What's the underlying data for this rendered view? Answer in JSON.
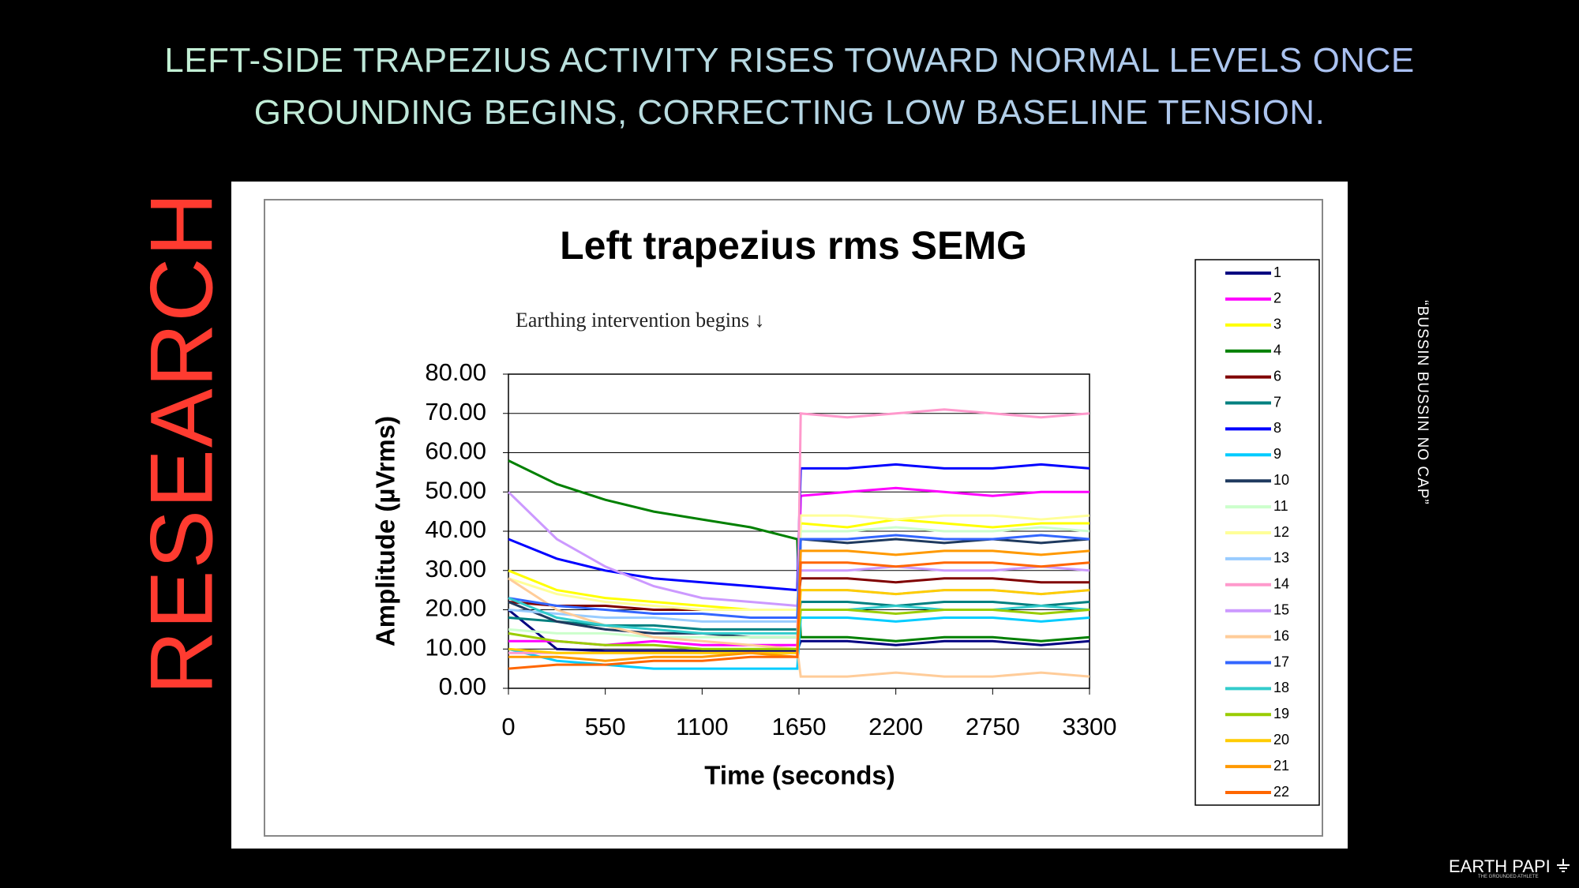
{
  "header": {
    "title_lines": [
      "LEFT-SIDE TRAPEZIUS ACTIVITY RISES TOWARD NORMAL LEVELS ONCE",
      "GROUNDING BEGINS, CORRECTING LOW BASELINE TENSION."
    ]
  },
  "side_label": "RESEARCH",
  "quote": "“BUSSIN BUSSIN NO CAP”",
  "brand": {
    "name": "EARTH PAPI",
    "tagline": "THE GROUNDED ATHLETE"
  },
  "chart_data": {
    "type": "line",
    "title": "Left trapezius rms SEMG",
    "annotation": "Earthing intervention begins ↓",
    "x_label": "Time (seconds)",
    "y_label": "Amplitude (µVrms)",
    "x": [
      0,
      275,
      550,
      825,
      1100,
      1375,
      1640,
      1660,
      1925,
      2200,
      2475,
      2750,
      3025,
      3300
    ],
    "xlim": [
      0,
      3300
    ],
    "xticks": [
      0,
      550,
      1100,
      1650,
      2200,
      2750,
      3300
    ],
    "ylim": [
      0,
      80
    ],
    "yticks": [
      {
        "value": 0,
        "label": "0.00"
      },
      {
        "value": 10,
        "label": "10.00"
      },
      {
        "value": 20,
        "label": "20.00"
      },
      {
        "value": 30,
        "label": "30.00"
      },
      {
        "value": 40,
        "label": "40.00"
      },
      {
        "value": 50,
        "label": "50.00"
      },
      {
        "value": 60,
        "label": "60.00"
      },
      {
        "value": 70,
        "label": "70.00"
      },
      {
        "value": 80,
        "label": "80.00"
      }
    ],
    "grid": true,
    "series": [
      {
        "name": "1",
        "color": "#000080",
        "values": [
          20,
          10,
          9.5,
          9.5,
          9.5,
          9.5,
          9.5,
          12,
          12,
          11,
          12,
          12,
          11,
          12
        ]
      },
      {
        "name": "2",
        "color": "#ff00ff",
        "values": [
          12,
          12,
          11,
          12,
          11,
          11,
          11,
          49,
          50,
          51,
          50,
          49,
          50,
          50
        ]
      },
      {
        "name": "3",
        "color": "#ffff00",
        "values": [
          30,
          25,
          23,
          22,
          21,
          20,
          20,
          42,
          41,
          43,
          42,
          41,
          42,
          42
        ]
      },
      {
        "name": "4",
        "color": "#008000",
        "values": [
          58,
          52,
          48,
          45,
          43,
          41,
          38,
          13,
          13,
          12,
          13,
          13,
          12,
          13
        ]
      },
      {
        "name": "6",
        "color": "#800000",
        "values": [
          22,
          21,
          21,
          20,
          20,
          20,
          20,
          28,
          28,
          27,
          28,
          28,
          27,
          27
        ]
      },
      {
        "name": "7",
        "color": "#008080",
        "values": [
          18,
          17,
          16,
          16,
          15,
          15,
          15,
          22,
          22,
          21,
          22,
          22,
          21,
          22
        ]
      },
      {
        "name": "8",
        "color": "#0000ff",
        "values": [
          38,
          33,
          30,
          28,
          27,
          26,
          25,
          56,
          56,
          57,
          56,
          56,
          57,
          56
        ]
      },
      {
        "name": "9",
        "color": "#00ccff",
        "values": [
          10,
          7,
          6,
          5,
          5,
          5,
          5,
          18,
          18,
          17,
          18,
          18,
          17,
          18
        ]
      },
      {
        "name": "10",
        "color": "#1f3a5f",
        "values": [
          22,
          17,
          15,
          14,
          14,
          13,
          13,
          38,
          37,
          38,
          37,
          38,
          37,
          38
        ]
      },
      {
        "name": "11",
        "color": "#ccffcc",
        "values": [
          15,
          14,
          14,
          13,
          13,
          13,
          13,
          40,
          40,
          41,
          40,
          40,
          41,
          40
        ]
      },
      {
        "name": "12",
        "color": "#ffff99",
        "values": [
          28,
          24,
          22,
          21,
          20,
          20,
          20,
          44,
          44,
          43,
          44,
          44,
          43,
          44
        ]
      },
      {
        "name": "13",
        "color": "#99ccff",
        "values": [
          20,
          19,
          18,
          18,
          17,
          17,
          17,
          25,
          25,
          24,
          25,
          25,
          24,
          25
        ]
      },
      {
        "name": "14",
        "color": "#ff99cc",
        "values": [
          9,
          9,
          9,
          9,
          9,
          9,
          9,
          70,
          69,
          70,
          71,
          70,
          69,
          70
        ]
      },
      {
        "name": "15",
        "color": "#cc99ff",
        "values": [
          50,
          38,
          31,
          26,
          23,
          22,
          21,
          30,
          30,
          31,
          30,
          30,
          31,
          30
        ]
      },
      {
        "name": "16",
        "color": "#ffcc99",
        "values": [
          28,
          20,
          16,
          13,
          12,
          11,
          10,
          3,
          3,
          4,
          3,
          3,
          4,
          3
        ]
      },
      {
        "name": "17",
        "color": "#3366ff",
        "values": [
          23,
          21,
          20,
          19,
          19,
          18,
          18,
          38,
          38,
          39,
          38,
          38,
          39,
          38
        ]
      },
      {
        "name": "18",
        "color": "#33cccc",
        "values": [
          23,
          18,
          16,
          15,
          14,
          14,
          14,
          20,
          20,
          21,
          20,
          20,
          21,
          20
        ]
      },
      {
        "name": "19",
        "color": "#99cc00",
        "values": [
          14,
          12,
          11,
          11,
          10,
          10,
          10,
          20,
          20,
          19,
          20,
          20,
          19,
          20
        ]
      },
      {
        "name": "20",
        "color": "#ffcc00",
        "values": [
          10,
          9,
          9,
          9,
          9,
          9,
          9,
          25,
          25,
          24,
          25,
          25,
          24,
          25
        ]
      },
      {
        "name": "21",
        "color": "#ff9900",
        "values": [
          8,
          8,
          7,
          8,
          8,
          9,
          8,
          35,
          35,
          34,
          35,
          35,
          34,
          35
        ]
      },
      {
        "name": "22",
        "color": "#ff6600",
        "values": [
          5,
          6,
          6,
          7,
          7,
          8,
          8,
          32,
          32,
          31,
          32,
          32,
          31,
          32
        ]
      }
    ]
  }
}
